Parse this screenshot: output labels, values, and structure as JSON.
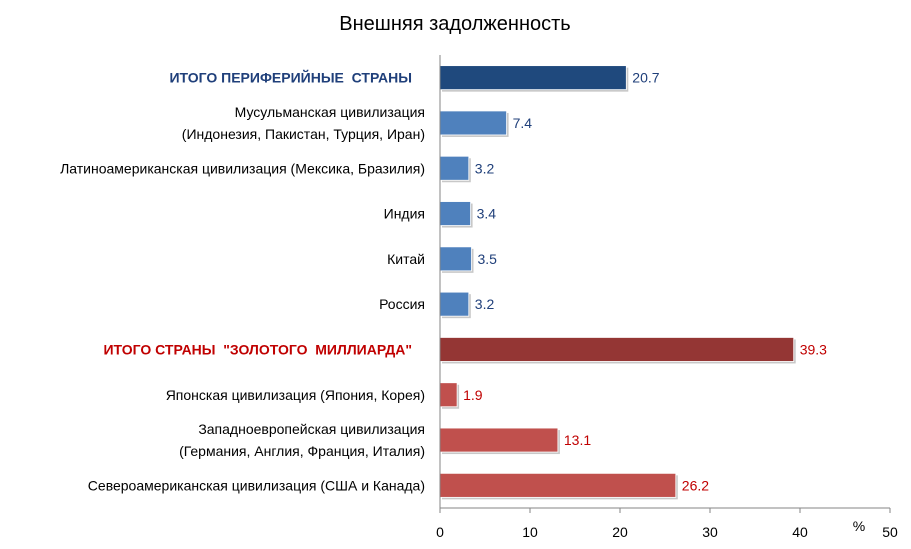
{
  "chart_data": {
    "type": "bar",
    "orientation": "horizontal",
    "title": "Внешняя задолженность",
    "unit_label": "%",
    "xlim": [
      0,
      50
    ],
    "x_ticks": [
      "0",
      "10",
      "20",
      "30",
      "40",
      "50"
    ],
    "grid": false,
    "legend": "none",
    "colors": {
      "periphery_total": "#1f497d",
      "periphery": "#4f81bd",
      "golden_total": "#943634",
      "golden": "#c0504d",
      "periphery_label": "#1f3f7a",
      "golden_label": "#c00000"
    },
    "categories": [
      {
        "label": [
          "ИТОГО ПЕРИФЕРИЙНЫЕ  СТРАНЫ"
        ],
        "value": 20.7,
        "value_label": "20.7",
        "group": "periphery_total",
        "strong": true
      },
      {
        "label": [
          "Мусульманская цивилизация",
          "(Индонезия, Пакистан, Турция, Иран)"
        ],
        "value": 7.4,
        "value_label": "7.4",
        "group": "periphery",
        "strong": false
      },
      {
        "label": [
          "Латиноамериканская цивилизация (Мексика, Бразилия)"
        ],
        "value": 3.2,
        "value_label": "3.2",
        "group": "periphery",
        "strong": false
      },
      {
        "label": [
          "Индия"
        ],
        "value": 3.4,
        "value_label": "3.4",
        "group": "periphery",
        "strong": false
      },
      {
        "label": [
          "Китай"
        ],
        "value": 3.5,
        "value_label": "3.5",
        "group": "periphery",
        "strong": false
      },
      {
        "label": [
          "Россия"
        ],
        "value": 3.2,
        "value_label": "3.2",
        "group": "periphery",
        "strong": false
      },
      {
        "label": [
          "ИТОГО СТРАНЫ  \"ЗОЛОТОГО  МИЛЛИАРДА\""
        ],
        "value": 39.3,
        "value_label": "39.3",
        "group": "golden_total",
        "strong": true
      },
      {
        "label": [
          "Японская цивилизация (Япония, Корея)"
        ],
        "value": 1.9,
        "value_label": "1.9",
        "group": "golden",
        "strong": false
      },
      {
        "label": [
          "Западноевропейская цивилизация",
          "(Германия, Англия, Франция, Италия)"
        ],
        "value": 13.1,
        "value_label": "13.1",
        "group": "golden",
        "strong": false
      },
      {
        "label": [
          "Североамериканская цивилизация (США и Канада)"
        ],
        "value": 26.2,
        "value_label": "26.2",
        "group": "golden",
        "strong": false
      }
    ]
  }
}
